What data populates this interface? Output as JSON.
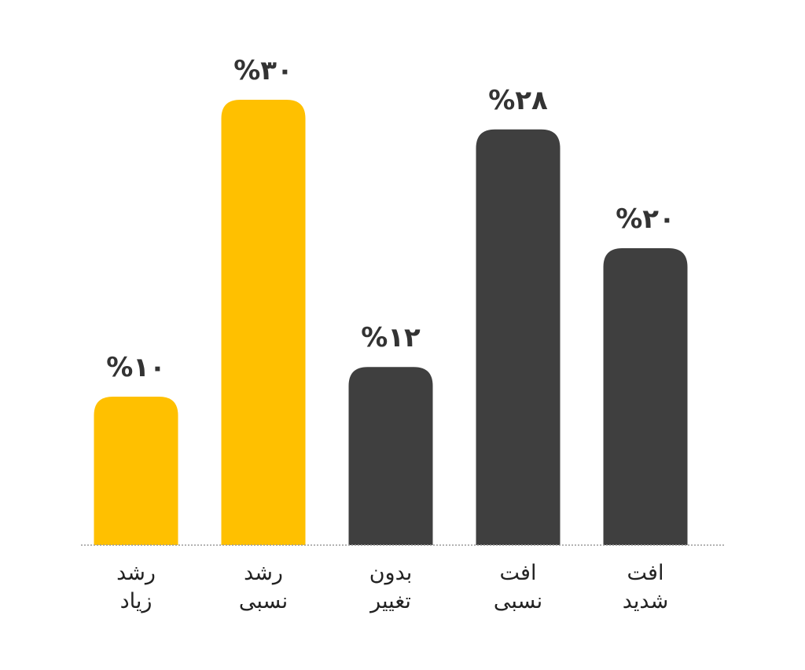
{
  "chart_data": {
    "type": "bar",
    "title": "",
    "xlabel": "",
    "ylabel": "",
    "ylim": [
      0,
      30
    ],
    "grid": false,
    "legend": "none",
    "unit": "%",
    "categories": [
      [
        "رشد",
        "زیاد"
      ],
      [
        "رشد",
        "نسبی"
      ],
      [
        "بدون",
        "تغییر"
      ],
      [
        "افت",
        "نسبی"
      ],
      [
        "افت",
        "شدید"
      ]
    ],
    "values": [
      10,
      30,
      12,
      28,
      20
    ],
    "value_labels": [
      "%۱۰",
      "%۳۰",
      "%۱۲",
      "%۲۸",
      "%۲۰"
    ],
    "bar_colors": [
      "#FFC000",
      "#FFC000",
      "#3F3F3F",
      "#3F3F3F",
      "#3F3F3F"
    ],
    "baseline_color": "#9a9a9a"
  }
}
